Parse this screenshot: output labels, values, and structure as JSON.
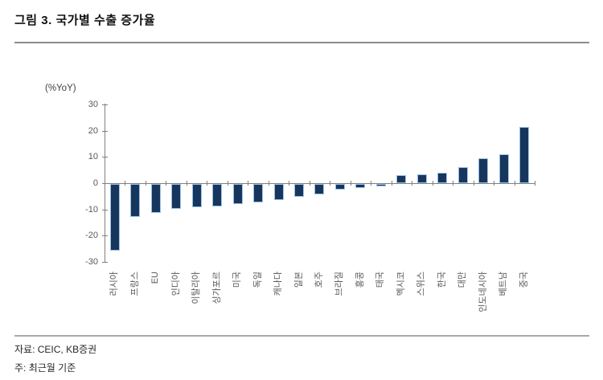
{
  "header": {
    "title": "그림 3. 국가별 수출 증가율"
  },
  "chart_data": {
    "type": "bar",
    "title": "그림 3. 국가별 수출 증가율",
    "unit_label": "(%YoY)",
    "categories": [
      "러시아",
      "프랑스",
      "EU",
      "인디아",
      "이탈리아",
      "싱가포르",
      "미국",
      "독일",
      "캐나다",
      "일본",
      "호주",
      "브라질",
      "홍콩",
      "태국",
      "멕시코",
      "스위스",
      "한국",
      "대만",
      "인도네시아",
      "베트남",
      "중국"
    ],
    "values": [
      -25.5,
      -12.5,
      -11,
      -9.5,
      -9,
      -8.5,
      -7.5,
      -7,
      -6,
      -5,
      -4,
      -2,
      -1.5,
      -1,
      3,
      3.5,
      4,
      6,
      9.5,
      11,
      21.5
    ],
    "y_ticks": [
      30,
      20,
      10,
      0,
      -10,
      -20,
      -30
    ],
    "ylim": [
      -30,
      30
    ],
    "grid": false,
    "legend": "none",
    "colors": {
      "bar_fill": "#17365D",
      "bar_border": "#9DC3E6",
      "axis": "#808080",
      "tick_label": "#595959"
    }
  },
  "footer": {
    "source": "자료: CEIC, KB증권",
    "note": "주: 최근월 기준"
  }
}
